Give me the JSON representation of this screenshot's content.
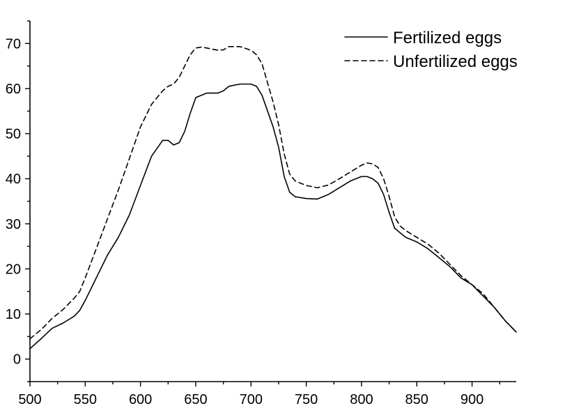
{
  "chart_data": {
    "type": "line",
    "title": "",
    "xlabel": "",
    "ylabel": "",
    "xlim": [
      500,
      940
    ],
    "ylim": [
      -5,
      75
    ],
    "x_ticks": [
      500,
      550,
      600,
      650,
      700,
      750,
      800,
      850,
      900
    ],
    "y_ticks": [
      0,
      10,
      20,
      30,
      40,
      50,
      60,
      70
    ],
    "grid": false,
    "legend_position": "top-right",
    "series": [
      {
        "name": "Fertilized eggs",
        "line_style": "solid",
        "color": "#000000",
        "x": [
          500,
          510,
          520,
          530,
          540,
          545,
          550,
          560,
          570,
          580,
          590,
          600,
          610,
          620,
          625,
          630,
          635,
          640,
          645,
          650,
          660,
          670,
          675,
          680,
          690,
          700,
          705,
          710,
          720,
          725,
          730,
          735,
          740,
          750,
          760,
          770,
          780,
          790,
          800,
          805,
          810,
          815,
          820,
          825,
          830,
          835,
          840,
          850,
          860,
          870,
          880,
          890,
          900,
          910,
          920,
          930,
          940
        ],
        "values": [
          2.3,
          4.5,
          6.8,
          8.0,
          9.5,
          10.8,
          13.0,
          18.0,
          23.0,
          27.0,
          32.0,
          38.5,
          45.0,
          48.5,
          48.5,
          47.5,
          48.0,
          50.5,
          54.5,
          58.0,
          59.0,
          59.0,
          59.5,
          60.5,
          61.0,
          61.0,
          60.5,
          58.5,
          51.5,
          47.0,
          40.5,
          37.0,
          36.0,
          35.6,
          35.5,
          36.5,
          38.0,
          39.5,
          40.5,
          40.5,
          40.0,
          39.0,
          36.5,
          32.5,
          29.0,
          28.0,
          27.0,
          26.0,
          24.5,
          22.5,
          20.5,
          18.0,
          16.5,
          14.0,
          11.5,
          8.5,
          6.0
        ]
      },
      {
        "name": "Unfertilized eggs",
        "line_style": "dashed",
        "color": "#000000",
        "x": [
          500,
          510,
          520,
          530,
          540,
          545,
          550,
          560,
          570,
          580,
          590,
          600,
          610,
          620,
          625,
          630,
          635,
          640,
          645,
          650,
          655,
          660,
          670,
          675,
          680,
          690,
          700,
          705,
          710,
          720,
          725,
          730,
          735,
          740,
          750,
          760,
          770,
          780,
          790,
          800,
          805,
          810,
          815,
          820,
          825,
          830,
          835,
          840,
          850,
          860,
          870,
          880,
          890,
          900,
          910,
          920,
          930,
          940
        ],
        "values": [
          4.5,
          6.5,
          9.0,
          11.0,
          13.5,
          15.0,
          18.0,
          24.5,
          31.0,
          37.5,
          44.5,
          51.5,
          56.5,
          59.5,
          60.5,
          61.0,
          62.5,
          65.0,
          67.5,
          69.0,
          69.2,
          69.0,
          68.5,
          68.6,
          69.3,
          69.3,
          68.5,
          67.5,
          65.5,
          57.0,
          52.0,
          45.5,
          41.0,
          39.5,
          38.5,
          38.0,
          38.6,
          40.0,
          41.5,
          43.0,
          43.5,
          43.3,
          42.5,
          40.0,
          36.0,
          31.5,
          29.5,
          28.5,
          27.0,
          25.5,
          23.5,
          21.0,
          18.5,
          16.5,
          14.5,
          11.5,
          8.5,
          6.0
        ]
      }
    ]
  }
}
